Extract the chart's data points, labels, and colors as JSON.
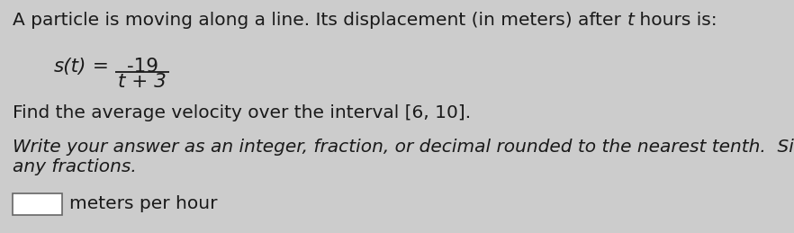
{
  "background_color": "#cccccc",
  "text_color": "#1a1a1a",
  "line1_pre": "A particle is moving along a line. Its displacement (in meters) after ",
  "line1_t": "t",
  "line1_post": " hours is:",
  "formula_s": "s",
  "formula_left": "(t) = ",
  "formula_num": "-19",
  "formula_den": "t + 3",
  "line3": "Find the average velocity over the interval [6, 10].",
  "line4": "Write your answer as an integer, fraction, or decimal rounded to the nearest tenth.  Simplify",
  "line5": "any fractions.",
  "line6": "meters per hour",
  "font_size": 14.5,
  "box_label_color": "#555555"
}
